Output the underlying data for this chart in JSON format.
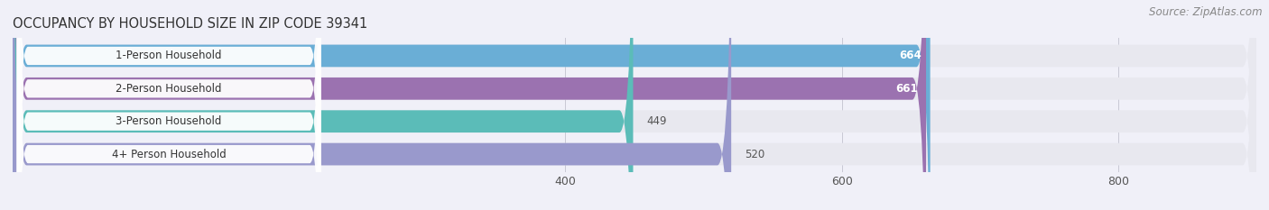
{
  "title": "OCCUPANCY BY HOUSEHOLD SIZE IN ZIP CODE 39341",
  "source": "Source: ZipAtlas.com",
  "categories": [
    "1-Person Household",
    "2-Person Household",
    "3-Person Household",
    "4+ Person Household"
  ],
  "values": [
    664,
    661,
    449,
    520
  ],
  "bar_colors": [
    "#6aaed6",
    "#9b72b0",
    "#5bbcb8",
    "#9999cc"
  ],
  "bar_bg_color": "#e8e8ef",
  "value_colors": [
    "#ffffff",
    "#ffffff",
    "#666666",
    "#666666"
  ],
  "xlim": [
    0,
    900
  ],
  "xticks": [
    400,
    600,
    800
  ],
  "title_fontsize": 10.5,
  "source_fontsize": 8.5,
  "bar_label_fontsize": 8.5,
  "value_fontsize": 8.5,
  "figsize": [
    14.06,
    2.33
  ],
  "dpi": 100,
  "background_color": "#f0f0f8"
}
